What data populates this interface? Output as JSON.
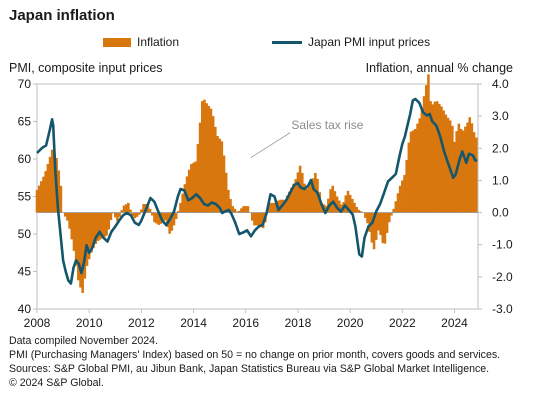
{
  "chart_data": {
    "type": "bar+line (dual axis)",
    "title": "Japan inflation",
    "left_axis_label": "PMI, composite input prices",
    "right_axis_label": "Inflation, annual % change",
    "left_ylim": [
      40,
      70
    ],
    "left_ticks": [
      "70",
      "65",
      "60",
      "55",
      "50",
      "45",
      "40"
    ],
    "right_ylim": [
      -3.0,
      4.0
    ],
    "right_ticks": [
      "4.0",
      "3.0",
      "2.0",
      "1.0",
      "0.0",
      "-1.0",
      "-2.0",
      "-3.0"
    ],
    "x_range": [
      2008,
      2024.9
    ],
    "x_ticks": [
      "2008",
      "2010",
      "2012",
      "2014",
      "2016",
      "2018",
      "2020",
      "2022",
      "2024"
    ],
    "legend_position": "top-center",
    "annotation": "Sales tax rise",
    "series": [
      {
        "name": "Inflation",
        "axis": "right",
        "kind": "bar",
        "color": "#D9770F",
        "points": [
          [
            2008.0,
            0.7
          ],
          [
            2008.3,
            1.2
          ],
          [
            2008.6,
            2.0
          ],
          [
            2008.75,
            1.7
          ],
          [
            2008.9,
            1.0
          ],
          [
            2009.0,
            0.0
          ],
          [
            2009.2,
            -0.3
          ],
          [
            2009.4,
            -1.1
          ],
          [
            2009.6,
            -2.2
          ],
          [
            2009.75,
            -2.5
          ],
          [
            2009.9,
            -1.7
          ],
          [
            2010.1,
            -1.2
          ],
          [
            2010.3,
            -0.9
          ],
          [
            2010.5,
            -0.8
          ],
          [
            2010.7,
            -0.7
          ],
          [
            2010.9,
            0.0
          ],
          [
            2011.1,
            -0.3
          ],
          [
            2011.3,
            0.2
          ],
          [
            2011.5,
            0.3
          ],
          [
            2011.7,
            -0.2
          ],
          [
            2011.9,
            -0.1
          ],
          [
            2012.1,
            0.3
          ],
          [
            2012.3,
            0.2
          ],
          [
            2012.5,
            -0.3
          ],
          [
            2012.7,
            -0.4
          ],
          [
            2012.9,
            -0.2
          ],
          [
            2013.1,
            -0.7
          ],
          [
            2013.3,
            -0.3
          ],
          [
            2013.5,
            0.3
          ],
          [
            2013.7,
            1.0
          ],
          [
            2013.9,
            1.5
          ],
          [
            2014.1,
            1.6
          ],
          [
            2014.35,
            3.6
          ],
          [
            2014.5,
            3.4
          ],
          [
            2014.7,
            3.2
          ],
          [
            2014.9,
            2.4
          ],
          [
            2015.1,
            2.2
          ],
          [
            2015.35,
            0.6
          ],
          [
            2015.5,
            0.2
          ],
          [
            2015.7,
            0.0
          ],
          [
            2015.9,
            0.2
          ],
          [
            2016.1,
            0.2
          ],
          [
            2016.3,
            -0.4
          ],
          [
            2016.5,
            -0.4
          ],
          [
            2016.7,
            -0.5
          ],
          [
            2016.9,
            0.3
          ],
          [
            2017.1,
            0.3
          ],
          [
            2017.3,
            0.4
          ],
          [
            2017.5,
            0.4
          ],
          [
            2017.7,
            0.7
          ],
          [
            2017.9,
            1.0
          ],
          [
            2018.1,
            1.5
          ],
          [
            2018.3,
            0.7
          ],
          [
            2018.5,
            0.9
          ],
          [
            2018.7,
            1.3
          ],
          [
            2018.9,
            0.3
          ],
          [
            2019.1,
            0.2
          ],
          [
            2019.3,
            0.9
          ],
          [
            2019.5,
            0.5
          ],
          [
            2019.7,
            0.2
          ],
          [
            2019.9,
            0.7
          ],
          [
            2020.1,
            0.4
          ],
          [
            2020.3,
            0.1
          ],
          [
            2020.5,
            0.0
          ],
          [
            2020.7,
            -0.4
          ],
          [
            2020.9,
            -1.2
          ],
          [
            2021.1,
            -0.5
          ],
          [
            2021.3,
            -1.1
          ],
          [
            2021.5,
            -0.3
          ],
          [
            2021.7,
            0.2
          ],
          [
            2021.9,
            0.8
          ],
          [
            2022.1,
            1.2
          ],
          [
            2022.3,
            2.5
          ],
          [
            2022.5,
            2.6
          ],
          [
            2022.7,
            3.0
          ],
          [
            2022.85,
            3.7
          ],
          [
            2023.0,
            4.3
          ],
          [
            2023.1,
            3.3
          ],
          [
            2023.3,
            3.5
          ],
          [
            2023.5,
            3.3
          ],
          [
            2023.7,
            3.0
          ],
          [
            2023.9,
            2.8
          ],
          [
            2024.0,
            2.2
          ],
          [
            2024.15,
            2.8
          ],
          [
            2024.3,
            2.5
          ],
          [
            2024.5,
            2.8
          ],
          [
            2024.6,
            3.0
          ],
          [
            2024.75,
            2.5
          ],
          [
            2024.85,
            2.3
          ]
        ]
      },
      {
        "name": "Japan PMI input prices",
        "axis": "left",
        "kind": "line",
        "color": "#14566B",
        "points": [
          [
            2008.0,
            60.8
          ],
          [
            2008.2,
            61.5
          ],
          [
            2008.35,
            61.8
          ],
          [
            2008.5,
            64.0
          ],
          [
            2008.58,
            65.3
          ],
          [
            2008.62,
            64.5
          ],
          [
            2008.7,
            58.5
          ],
          [
            2008.8,
            53.5
          ],
          [
            2008.9,
            50.0
          ],
          [
            2009.0,
            46.5
          ],
          [
            2009.1,
            45.0
          ],
          [
            2009.2,
            43.8
          ],
          [
            2009.3,
            43.4
          ],
          [
            2009.4,
            45.5
          ],
          [
            2009.5,
            46.5
          ],
          [
            2009.6,
            46.0
          ],
          [
            2009.7,
            44.8
          ],
          [
            2009.8,
            46.2
          ],
          [
            2009.9,
            48.5
          ],
          [
            2010.0,
            47.5
          ],
          [
            2010.1,
            48.0
          ],
          [
            2010.25,
            49.5
          ],
          [
            2010.4,
            50.3
          ],
          [
            2010.55,
            49.5
          ],
          [
            2010.7,
            49.0
          ],
          [
            2010.85,
            50.3
          ],
          [
            2011.0,
            51.0
          ],
          [
            2011.15,
            51.8
          ],
          [
            2011.3,
            52.5
          ],
          [
            2011.45,
            52.8
          ],
          [
            2011.6,
            52.5
          ],
          [
            2011.75,
            51.5
          ],
          [
            2011.9,
            51.2
          ],
          [
            2012.0,
            51.8
          ],
          [
            2012.2,
            53.5
          ],
          [
            2012.35,
            54.8
          ],
          [
            2012.5,
            54.3
          ],
          [
            2012.65,
            53.0
          ],
          [
            2012.8,
            51.8
          ],
          [
            2012.95,
            51.2
          ],
          [
            2013.1,
            52.0
          ],
          [
            2013.25,
            53.0
          ],
          [
            2013.4,
            55.0
          ],
          [
            2013.5,
            56.0
          ],
          [
            2013.65,
            55.8
          ],
          [
            2013.8,
            54.5
          ],
          [
            2013.95,
            54.8
          ],
          [
            2014.1,
            55.3
          ],
          [
            2014.25,
            54.8
          ],
          [
            2014.4,
            54.0
          ],
          [
            2014.55,
            53.8
          ],
          [
            2014.7,
            54.2
          ],
          [
            2014.85,
            54.0
          ],
          [
            2015.0,
            53.5
          ],
          [
            2015.1,
            52.8
          ],
          [
            2015.2,
            53.0
          ],
          [
            2015.35,
            53.2
          ],
          [
            2015.45,
            52.7
          ],
          [
            2015.6,
            51.5
          ],
          [
            2015.75,
            50.0
          ],
          [
            2015.9,
            50.2
          ],
          [
            2016.05,
            50.5
          ],
          [
            2016.2,
            49.7
          ],
          [
            2016.35,
            50.5
          ],
          [
            2016.5,
            51.0
          ],
          [
            2016.65,
            51.2
          ],
          [
            2016.8,
            52.8
          ],
          [
            2016.95,
            55.3
          ],
          [
            2017.1,
            55.0
          ],
          [
            2017.25,
            53.2
          ],
          [
            2017.4,
            53.8
          ],
          [
            2017.55,
            54.5
          ],
          [
            2017.7,
            55.5
          ],
          [
            2017.85,
            56.5
          ],
          [
            2018.0,
            56.8
          ],
          [
            2018.1,
            56.2
          ],
          [
            2018.25,
            56.0
          ],
          [
            2018.4,
            56.5
          ],
          [
            2018.5,
            57.2
          ],
          [
            2018.6,
            56.0
          ],
          [
            2018.75,
            55.5
          ],
          [
            2018.9,
            54.0
          ],
          [
            2019.05,
            52.8
          ],
          [
            2019.2,
            53.8
          ],
          [
            2019.35,
            54.3
          ],
          [
            2019.5,
            53.5
          ],
          [
            2019.65,
            53.0
          ],
          [
            2019.8,
            53.8
          ],
          [
            2019.95,
            53.2
          ],
          [
            2020.1,
            52.6
          ],
          [
            2020.2,
            51.0
          ],
          [
            2020.3,
            48.5
          ],
          [
            2020.35,
            47.3
          ],
          [
            2020.45,
            47.0
          ],
          [
            2020.55,
            49.5
          ],
          [
            2020.7,
            51.0
          ],
          [
            2020.85,
            51.5
          ],
          [
            2021.0,
            53.0
          ],
          [
            2021.15,
            54.0
          ],
          [
            2021.3,
            55.5
          ],
          [
            2021.45,
            57.0
          ],
          [
            2021.6,
            57.5
          ],
          [
            2021.75,
            58.0
          ],
          [
            2021.9,
            60.5
          ],
          [
            2022.0,
            62.0
          ],
          [
            2022.1,
            63.0
          ],
          [
            2022.2,
            64.5
          ],
          [
            2022.3,
            66.0
          ],
          [
            2022.4,
            67.8
          ],
          [
            2022.5,
            68.0
          ],
          [
            2022.65,
            67.5
          ],
          [
            2022.8,
            66.2
          ],
          [
            2022.95,
            65.8
          ],
          [
            2023.05,
            66.0
          ],
          [
            2023.15,
            65.0
          ],
          [
            2023.3,
            64.5
          ],
          [
            2023.45,
            63.0
          ],
          [
            2023.6,
            61.0
          ],
          [
            2023.75,
            59.5
          ],
          [
            2023.85,
            58.5
          ],
          [
            2023.95,
            57.5
          ],
          [
            2024.05,
            58.0
          ],
          [
            2024.2,
            60.0
          ],
          [
            2024.3,
            61.0
          ],
          [
            2024.45,
            59.5
          ],
          [
            2024.55,
            60.7
          ],
          [
            2024.7,
            60.5
          ],
          [
            2024.8,
            59.8
          ],
          [
            2024.87,
            59.8
          ]
        ]
      }
    ]
  },
  "footer": {
    "line1": "Data compiled November 2024.",
    "line2": "PMI (Purchasing Managers' Index) based on 50 = no change on prior month, covers goods and services.",
    "line3": "Sources: S&P Global PMI, au Jibun Bank, Japan Statistics Bureau via S&P Global Market Intelligence.",
    "line4": "© 2024 S&P Global."
  }
}
